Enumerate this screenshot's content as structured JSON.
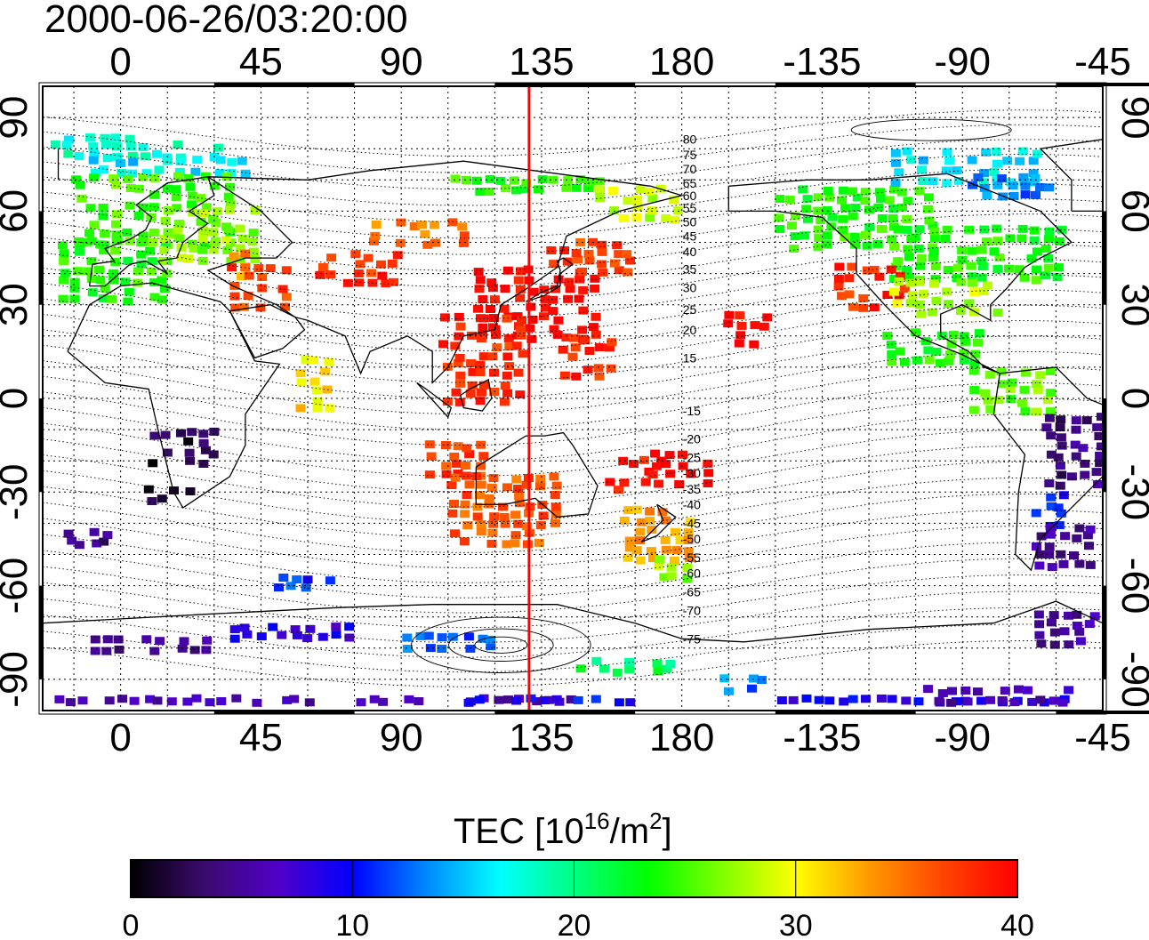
{
  "title": "2000-06-26/03:20:00",
  "map": {
    "lon_ticks": [
      0,
      45,
      90,
      135,
      180,
      -135,
      -90,
      -45
    ],
    "lat_ticks": [
      90,
      60,
      30,
      0,
      -30,
      -60,
      -90
    ],
    "lon_range": [
      -25,
      315
    ],
    "lat_range": [
      -100,
      100
    ],
    "marker_longitude": 131,
    "marker_color": "#ff0000",
    "contour_labels": [
      {
        "lat": 83,
        "text": "80"
      },
      {
        "lat": 78,
        "text": "75"
      },
      {
        "lat": 73.5,
        "text": "70"
      },
      {
        "lat": 69,
        "text": "65"
      },
      {
        "lat": 65,
        "text": "60"
      },
      {
        "lat": 61,
        "text": "55"
      },
      {
        "lat": 56.5,
        "text": "50"
      },
      {
        "lat": 52,
        "text": "45"
      },
      {
        "lat": 47,
        "text": "40"
      },
      {
        "lat": 41.5,
        "text": "35"
      },
      {
        "lat": 35.5,
        "text": "30"
      },
      {
        "lat": 28.5,
        "text": "25"
      },
      {
        "lat": 22,
        "text": "20"
      },
      {
        "lat": 13,
        "text": "15"
      },
      {
        "lat": -4,
        "text": "-15"
      },
      {
        "lat": -13,
        "text": "-20"
      },
      {
        "lat": -19,
        "text": "-25"
      },
      {
        "lat": -24,
        "text": "-30"
      },
      {
        "lat": -29,
        "text": "-35"
      },
      {
        "lat": -34,
        "text": "-40"
      },
      {
        "lat": -40,
        "text": "-45"
      },
      {
        "lat": -45,
        "text": "-50"
      },
      {
        "lat": -51,
        "text": "-55"
      },
      {
        "lat": -56,
        "text": "-60"
      },
      {
        "lat": -62,
        "text": "-65"
      },
      {
        "lat": -68,
        "text": "-70"
      },
      {
        "lat": -77,
        "text": "-75"
      }
    ]
  },
  "colorbar": {
    "title_main": "TEC  [10",
    "title_sup1": "16",
    "title_mid": "/m",
    "title_sup2": "2",
    "title_end": "]",
    "ticks": [
      0,
      10,
      20,
      30,
      40
    ],
    "min": 0,
    "max": 40,
    "stops": [
      "#000000",
      "#3a0a6e",
      "#5000c8",
      "#0000ff",
      "#0088ff",
      "#00ffff",
      "#00ff80",
      "#00ff00",
      "#80ff00",
      "#ffff00",
      "#ff9900",
      "#ff4400",
      "#ff0000"
    ]
  },
  "tec_regions": [
    {
      "lon": -8,
      "lat": 86,
      "w": 22,
      "h": 3,
      "tec": 17
    },
    {
      "lon": 5,
      "lat": 81,
      "w": 55,
      "h": 4,
      "tec": 18
    },
    {
      "lon": 15,
      "lat": 77,
      "w": 50,
      "h": 6,
      "tec": 16
    },
    {
      "lon": 10,
      "lat": 62,
      "w": 50,
      "h": 22,
      "tec": 25
    },
    {
      "lon": -2,
      "lat": 43,
      "w": 35,
      "h": 20,
      "tec": 24
    },
    {
      "lon": 28,
      "lat": 55,
      "w": 30,
      "h": 18,
      "tec": 27
    },
    {
      "lon": 40,
      "lat": 45,
      "w": 12,
      "h": 8,
      "tec": 34
    },
    {
      "lon": 45,
      "lat": 38,
      "w": 20,
      "h": 14,
      "tec": 37
    },
    {
      "lon": 75,
      "lat": 43,
      "w": 25,
      "h": 10,
      "tec": 38
    },
    {
      "lon": 95,
      "lat": 55,
      "w": 30,
      "h": 8,
      "tec": 35
    },
    {
      "lon": 133,
      "lat": 33,
      "w": 38,
      "h": 24,
      "tec": 40
    },
    {
      "lon": 150,
      "lat": 48,
      "w": 25,
      "h": 12,
      "tec": 37
    },
    {
      "lon": 130,
      "lat": 70,
      "w": 50,
      "h": 4,
      "tec": 24
    },
    {
      "lon": 165,
      "lat": 64,
      "w": 25,
      "h": 10,
      "tec": 28
    },
    {
      "lon": 115,
      "lat": 15,
      "w": 25,
      "h": 30,
      "tec": 38
    },
    {
      "lon": 150,
      "lat": 15,
      "w": 20,
      "h": 14,
      "tec": 38
    },
    {
      "lon": 108,
      "lat": -17,
      "w": 20,
      "h": 12,
      "tec": 37
    },
    {
      "lon": 62,
      "lat": 5,
      "w": 10,
      "h": 20,
      "tec": 31
    },
    {
      "lon": 123,
      "lat": -34,
      "w": 35,
      "h": 22,
      "tec": 36
    },
    {
      "lon": 165,
      "lat": -23,
      "w": 20,
      "h": 10,
      "tec": 39
    },
    {
      "lon": 180,
      "lat": -20,
      "w": 20,
      "h": 12,
      "tec": 40
    },
    {
      "lon": 172,
      "lat": -42,
      "w": 22,
      "h": 16,
      "tec": 33
    },
    {
      "lon": 178,
      "lat": -52,
      "w": 12,
      "h": 8,
      "tec": 27
    },
    {
      "lon": 200,
      "lat": 24,
      "w": 14,
      "h": 10,
      "tec": 40
    },
    {
      "lon": 235,
      "lat": 60,
      "w": 50,
      "h": 20,
      "tec": 24
    },
    {
      "lon": 275,
      "lat": 48,
      "w": 55,
      "h": 16,
      "tec": 24
    },
    {
      "lon": 240,
      "lat": 38,
      "w": 22,
      "h": 14,
      "tec": 38
    },
    {
      "lon": 265,
      "lat": 35,
      "w": 35,
      "h": 12,
      "tec": 28
    },
    {
      "lon": 270,
      "lat": 76,
      "w": 45,
      "h": 10,
      "tec": 16
    },
    {
      "lon": 285,
      "lat": 70,
      "w": 25,
      "h": 8,
      "tec": 13
    },
    {
      "lon": 260,
      "lat": 18,
      "w": 30,
      "h": 10,
      "tec": 24
    },
    {
      "lon": 285,
      "lat": 5,
      "w": 25,
      "h": 15,
      "tec": 26
    },
    {
      "lon": 305,
      "lat": -15,
      "w": 18,
      "h": 22,
      "tec": 4
    },
    {
      "lon": 297,
      "lat": -33,
      "w": 10,
      "h": 12,
      "tec": 10
    },
    {
      "lon": 303,
      "lat": -45,
      "w": 20,
      "h": 14,
      "tec": 5
    },
    {
      "lon": 303,
      "lat": -72,
      "w": 18,
      "h": 10,
      "tec": 5
    },
    {
      "lon": 20,
      "lat": -13,
      "w": 22,
      "h": 12,
      "tec": 2
    },
    {
      "lon": 15,
      "lat": -28,
      "w": 14,
      "h": 6,
      "tec": 1
    },
    {
      "lon": -10,
      "lat": -42,
      "w": 16,
      "h": 6,
      "tec": 4
    },
    {
      "lon": 60,
      "lat": -57,
      "w": 20,
      "h": 5,
      "tec": 11
    },
    {
      "lon": 10,
      "lat": -76,
      "w": 40,
      "h": 6,
      "tec": 5
    },
    {
      "lon": 55,
      "lat": -72,
      "w": 40,
      "h": 6,
      "tec": 8
    },
    {
      "lon": 105,
      "lat": -76,
      "w": 30,
      "h": 5,
      "tec": 12
    },
    {
      "lon": 160,
      "lat": -84,
      "w": 35,
      "h": 4,
      "tec": 21
    },
    {
      "lon": 200,
      "lat": -90,
      "w": 15,
      "h": 4,
      "tec": 13
    },
    {
      "lon": 60,
      "lat": -94,
      "w": 170,
      "h": 3,
      "tec": 6
    },
    {
      "lon": 140,
      "lat": -94,
      "w": 60,
      "h": 3,
      "tec": 10
    },
    {
      "lon": 260,
      "lat": -94,
      "w": 100,
      "h": 3,
      "tec": 9
    },
    {
      "lon": 280,
      "lat": -93,
      "w": 45,
      "h": 5,
      "tec": 6
    }
  ]
}
